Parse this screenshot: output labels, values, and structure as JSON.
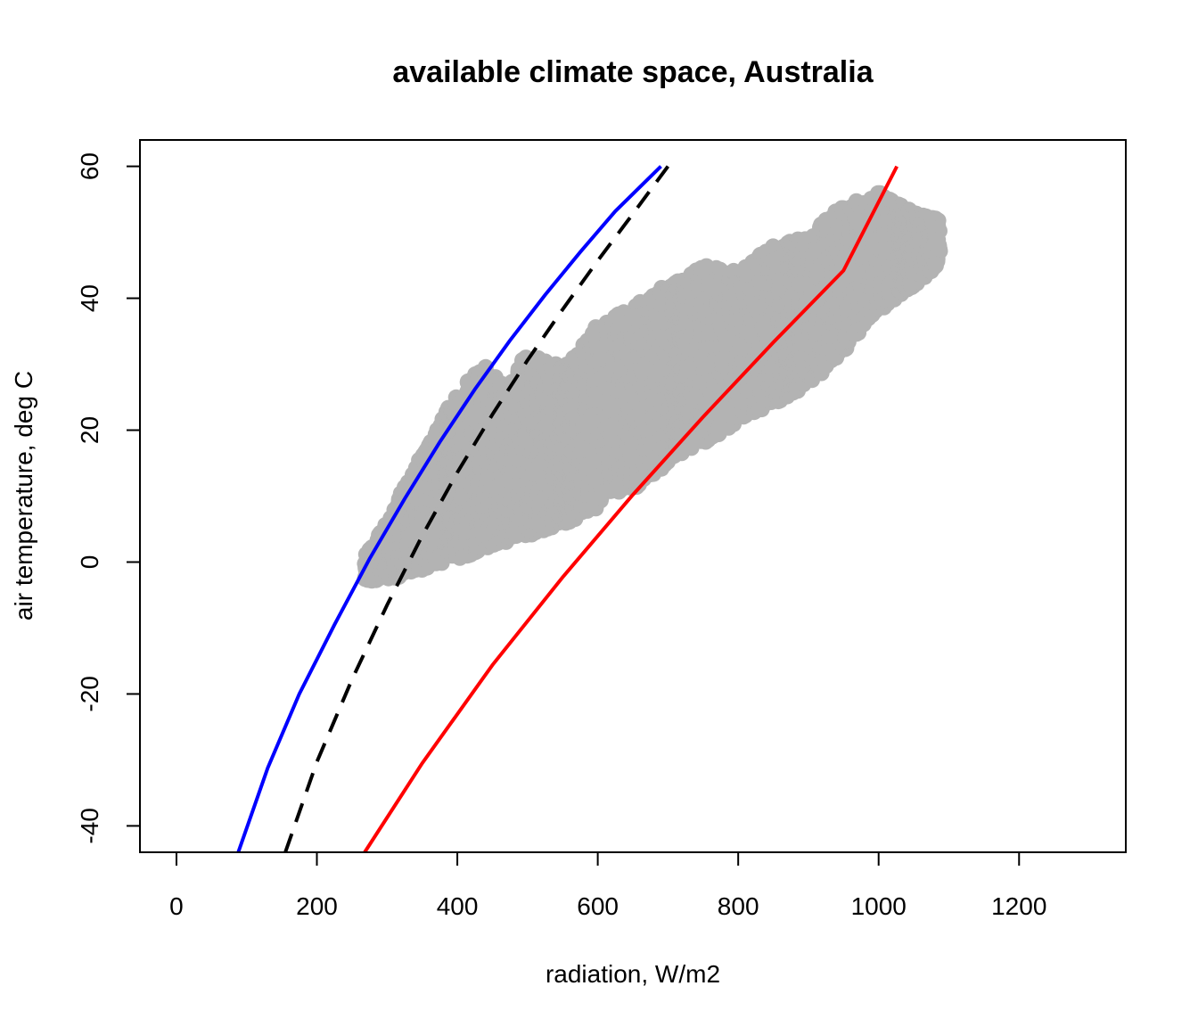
{
  "chart_data": {
    "type": "line",
    "title": "available climate space, Australia",
    "xlabel": "radiation, W/m2",
    "ylabel": "air temperature, deg C",
    "xlim": [
      -52,
      1352
    ],
    "ylim": [
      -44,
      64
    ],
    "xticks": [
      0,
      200,
      400,
      600,
      800,
      1000,
      1200
    ],
    "yticks": [
      -40,
      -20,
      0,
      20,
      40,
      60
    ],
    "grid": false,
    "legend": "none",
    "series": [
      {
        "style": "solid",
        "color": "#0000ff",
        "x": [
          88,
          130,
          175,
          225,
          275,
          325,
          375,
          425,
          475,
          525,
          575,
          625,
          690
        ],
        "y": [
          -44,
          -31.2,
          -20,
          -9.5,
          0.5,
          9.6,
          18.2,
          26.2,
          33.6,
          40.5,
          47,
          53.2,
          60
        ]
      },
      {
        "style": "dashed",
        "color": "#000000",
        "x": [
          155,
          200,
          250,
          300,
          350,
          400,
          450,
          500,
          550,
          600,
          650,
          700
        ],
        "y": [
          -44,
          -30.3,
          -17.8,
          -6.5,
          4,
          13.6,
          22.4,
          30.6,
          38.3,
          45.7,
          52.8,
          60
        ]
      },
      {
        "style": "solid",
        "color": "#ff0000",
        "x": [
          268,
          350,
          450,
          550,
          650,
          750,
          850,
          950,
          1026
        ],
        "y": [
          -44,
          -30.5,
          -15.6,
          -2.3,
          10.2,
          22,
          33.3,
          44.2,
          60
        ]
      }
    ],
    "scatter": {
      "color": "#b3b3b3",
      "description_bands": [
        {
          "x": [
            270,
            330,
            380,
            420,
            440,
            470,
            500,
            530,
            560,
            600,
            650,
            700,
            750,
            800,
            850,
            900,
            950,
            1000,
            1050,
            1085
          ],
          "ymin": [
            -3,
            -2,
            0,
            1,
            2,
            3,
            4,
            5,
            6,
            8,
            11,
            15,
            18,
            21,
            24,
            27,
            32,
            38,
            42,
            45
          ],
          "ymax": [
            1,
            12,
            22,
            28,
            30,
            26,
            32,
            30,
            30,
            36,
            39,
            42,
            45,
            44,
            48,
            50,
            54,
            56,
            53,
            52
          ]
        }
      ]
    }
  }
}
